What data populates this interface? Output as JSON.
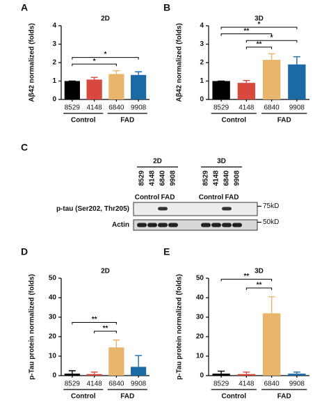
{
  "chart_data": [
    {
      "type": "bar",
      "panel": "A",
      "title": "2D",
      "ylabel": "Aβ42 normalized (folds)",
      "categories": [
        "8529",
        "4148",
        "6840",
        "9908"
      ],
      "values": [
        1.0,
        1.08,
        1.38,
        1.33
      ],
      "errors": [
        0,
        0.12,
        0.18,
        0.17
      ],
      "colors": [
        "#000000",
        "#d8483d",
        "#e9b46b",
        "#1b6aa6"
      ],
      "ylim": [
        0,
        4
      ],
      "yticks": [
        0,
        1,
        2,
        3,
        4
      ],
      "groups": [
        {
          "label": "Control",
          "from": "8529",
          "to": "4148"
        },
        {
          "label": "FAD",
          "from": "6840",
          "to": "9908"
        }
      ],
      "annotations": [
        {
          "text": "*",
          "from": "8529",
          "to": "6840"
        },
        {
          "text": "*",
          "from": "8529",
          "to": "9908"
        }
      ]
    },
    {
      "type": "bar",
      "panel": "B",
      "title": "3D",
      "ylabel": "Aβ42 normalized (folds)",
      "categories": [
        "8529",
        "4148",
        "6840",
        "9908"
      ],
      "values": [
        1.0,
        0.9,
        2.15,
        1.9
      ],
      "errors": [
        0,
        0.13,
        0.33,
        0.42
      ],
      "colors": [
        "#000000",
        "#d8483d",
        "#e9b46b",
        "#1b6aa6"
      ],
      "ylim": [
        0,
        4
      ],
      "yticks": [
        0,
        1,
        2,
        3,
        4
      ],
      "groups": [
        {
          "label": "Control",
          "from": "8529",
          "to": "4148"
        },
        {
          "label": "FAD",
          "from": "6840",
          "to": "9908"
        }
      ],
      "annotations": [
        {
          "text": "**",
          "from": "4148",
          "to": "6840"
        },
        {
          "text": "*",
          "from": "4148",
          "to": "9908"
        },
        {
          "text": "**",
          "from": "8529",
          "to": "6840"
        },
        {
          "text": "*",
          "from": "8529",
          "to": "9908"
        }
      ]
    },
    {
      "type": "bar",
      "panel": "D",
      "title": "2D",
      "ylabel": "p-Tau protein normalized (folds)",
      "categories": [
        "8529",
        "4148",
        "6840",
        "9908"
      ],
      "values": [
        1.0,
        0.8,
        14.5,
        4.5
      ],
      "errors": [
        1.5,
        1.0,
        3.8,
        5.8
      ],
      "colors": [
        "#000000",
        "#d8483d",
        "#e9b46b",
        "#1b6aa6"
      ],
      "ylim": [
        0,
        50
      ],
      "yticks": [
        0,
        10,
        20,
        30,
        40,
        50
      ],
      "groups": [
        {
          "label": "Control",
          "from": "8529",
          "to": "4148"
        },
        {
          "label": "FAD",
          "from": "6840",
          "to": "9908"
        }
      ],
      "annotations": [
        {
          "text": "**",
          "from": "4148",
          "to": "6840"
        },
        {
          "text": "**",
          "from": "8529",
          "to": "6840"
        }
      ]
    },
    {
      "type": "bar",
      "panel": "E",
      "title": "3D",
      "ylabel": "p-Tau protein normalized (folds)",
      "categories": [
        "8529",
        "4148",
        "6840",
        "9908"
      ],
      "values": [
        1.0,
        0.8,
        32,
        1.0
      ],
      "errors": [
        1.3,
        1.0,
        8.5,
        0.8
      ],
      "colors": [
        "#000000",
        "#d8483d",
        "#e9b46b",
        "#1b6aa6"
      ],
      "ylim": [
        0,
        50
      ],
      "yticks": [
        0,
        10,
        20,
        30,
        40,
        50
      ],
      "groups": [
        {
          "label": "Control",
          "from": "8529",
          "to": "4148"
        },
        {
          "label": "FAD",
          "from": "6840",
          "to": "9908"
        }
      ],
      "annotations": [
        {
          "text": "**",
          "from": "4148",
          "to": "6840"
        },
        {
          "text": "**",
          "from": "8529",
          "to": "6840"
        }
      ]
    }
  ],
  "blot": {
    "panel": "C",
    "conditions": [
      {
        "label": "2D",
        "lanes": [
          "8529",
          "4148",
          "6840",
          "9908"
        ],
        "groups": [
          "Control",
          "FAD"
        ]
      },
      {
        "label": "3D",
        "lanes": [
          "8529",
          "4148",
          "6840",
          "9908"
        ],
        "groups": [
          "Control",
          "FAD"
        ]
      }
    ],
    "rows": [
      {
        "label": "p-tau (Ser202, Thr205)",
        "marker": "75kD"
      },
      {
        "label": "Actin",
        "marker": "50kD"
      }
    ]
  }
}
